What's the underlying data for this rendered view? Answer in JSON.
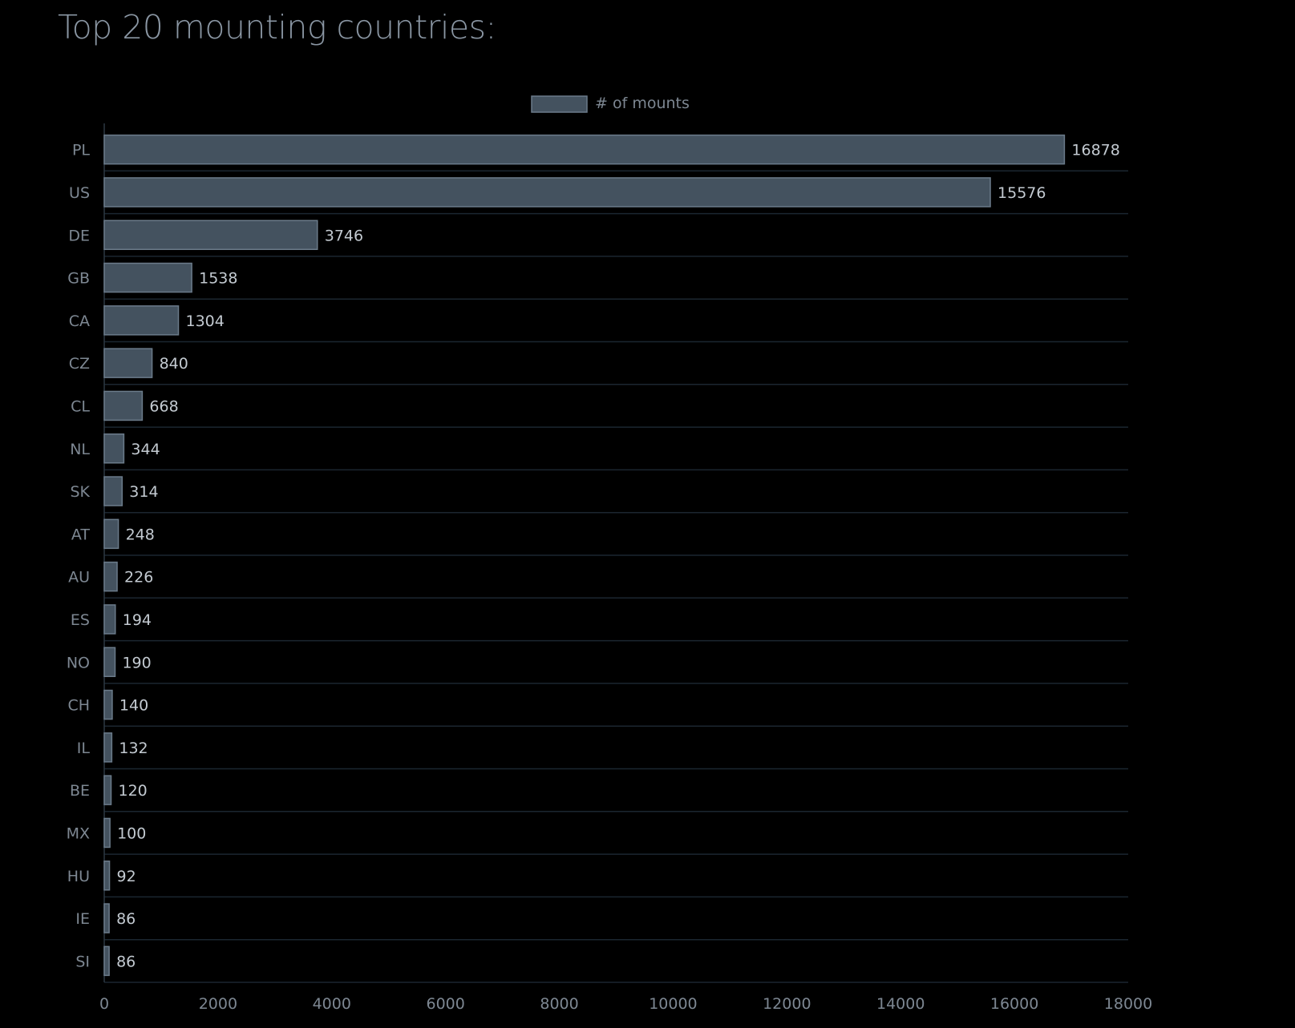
{
  "page": {
    "title": "Top 20 mounting countries:"
  },
  "chart_data": {
    "type": "bar",
    "orientation": "horizontal",
    "categories": [
      "PL",
      "US",
      "DE",
      "GB",
      "CA",
      "CZ",
      "CL",
      "NL",
      "SK",
      "AT",
      "AU",
      "ES",
      "NO",
      "CH",
      "IL",
      "BE",
      "MX",
      "HU",
      "IE",
      "SI"
    ],
    "series": [
      {
        "name": "# of mounts",
        "values": [
          16878,
          15576,
          3746,
          1538,
          1304,
          840,
          668,
          344,
          314,
          248,
          226,
          194,
          190,
          140,
          132,
          120,
          100,
          92,
          86,
          86
        ]
      }
    ],
    "xlim": [
      0,
      18000
    ],
    "xticks": [
      "0",
      "2000",
      "4000",
      "6000",
      "8000",
      "10000",
      "12000",
      "14000",
      "16000",
      "18000"
    ],
    "legend_position": "top-center",
    "grid": "horizontal-row-separators",
    "colors": {
      "bar_fill": "#44525f",
      "bar_stroke": "#6b7b8a",
      "grid": "#1b2630",
      "axis": "#2c3843",
      "background": "#000000"
    }
  }
}
